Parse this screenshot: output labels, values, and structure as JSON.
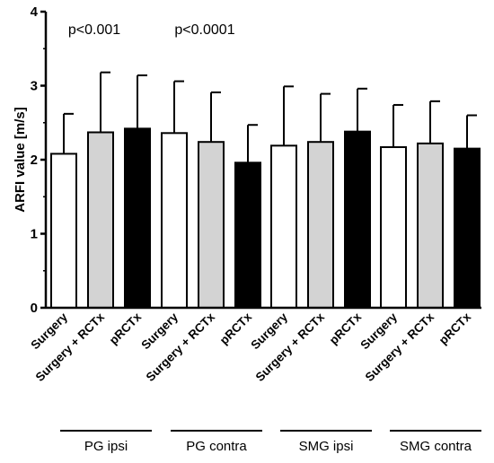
{
  "chart_data": {
    "type": "bar",
    "ylabel": "ARFI value [m/s]",
    "ylim": [
      0,
      4
    ],
    "yticks": [
      "0",
      "1",
      "2",
      "3",
      "4"
    ],
    "groups": [
      {
        "name": "PG ipsi",
        "annotation": "p<0.001",
        "bars": [
          {
            "category": "Surgery",
            "value": 2.08,
            "error": 0.54,
            "fill": "white"
          },
          {
            "category": "Surgery + RCTx",
            "value": 2.37,
            "error": 0.81,
            "fill": "gray"
          },
          {
            "category": "pRCTx",
            "value": 2.42,
            "error": 0.72,
            "fill": "black"
          }
        ]
      },
      {
        "name": "PG contra",
        "annotation": "p<0.0001",
        "bars": [
          {
            "category": "Surgery",
            "value": 2.36,
            "error": 0.7,
            "fill": "white"
          },
          {
            "category": "Surgery + RCTx",
            "value": 2.24,
            "error": 0.67,
            "fill": "gray"
          },
          {
            "category": "pRCTx",
            "value": 1.96,
            "error": 0.51,
            "fill": "black"
          }
        ]
      },
      {
        "name": "SMG ipsi",
        "annotation": "",
        "bars": [
          {
            "category": "Surgery",
            "value": 2.19,
            "error": 0.8,
            "fill": "white"
          },
          {
            "category": "Surgery + RCTx",
            "value": 2.24,
            "error": 0.65,
            "fill": "gray"
          },
          {
            "category": "pRCTx",
            "value": 2.38,
            "error": 0.58,
            "fill": "black"
          }
        ]
      },
      {
        "name": "SMG contra",
        "annotation": "",
        "bars": [
          {
            "category": "Surgery",
            "value": 2.17,
            "error": 0.57,
            "fill": "white"
          },
          {
            "category": "Surgery + RCTx",
            "value": 2.22,
            "error": 0.57,
            "fill": "gray"
          },
          {
            "category": "pRCTx",
            "value": 2.15,
            "error": 0.45,
            "fill": "black"
          }
        ]
      }
    ],
    "colors": {
      "white": "#ffffff",
      "gray": "#d3d3d3",
      "black": "#000000"
    }
  }
}
